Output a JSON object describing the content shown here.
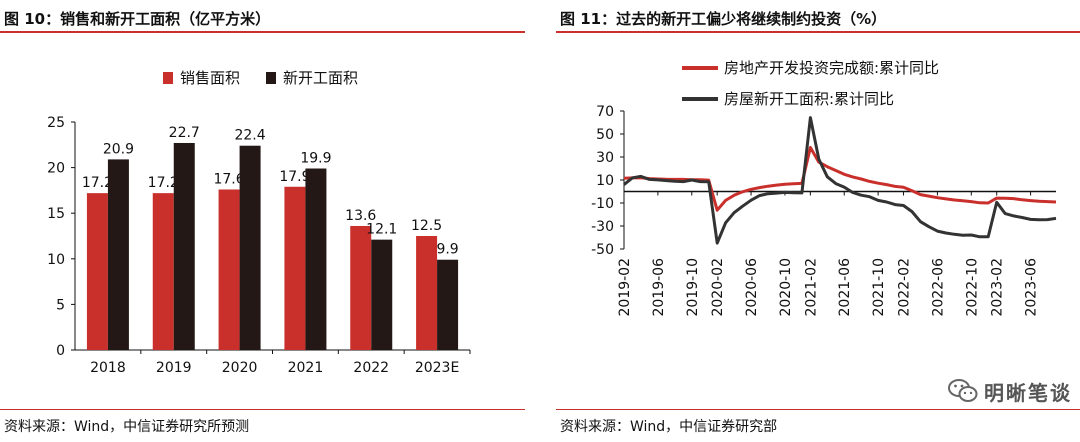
{
  "left": {
    "title": "图 10：销售和新开工面积（亿平方米）",
    "source": "资料来源：Wind，中信证券研究所预测",
    "colors": {
      "bar1": "#c9302c",
      "bar2": "#231815",
      "rule": "#c9302c"
    },
    "chart_data": {
      "type": "bar",
      "categories": [
        "2018",
        "2019",
        "2020",
        "2021",
        "2022",
        "2023E"
      ],
      "series": [
        {
          "name": "销售面积",
          "values": [
            17.2,
            17.2,
            17.6,
            17.9,
            13.6,
            12.5
          ],
          "labels": [
            "17.2",
            "17.2",
            "17.6",
            "17.9",
            "13.6",
            "12.5"
          ]
        },
        {
          "name": "新开工面积",
          "values": [
            20.9,
            22.7,
            22.4,
            19.9,
            12.1,
            9.9
          ],
          "labels": [
            "20.9",
            "22.7",
            "22.4",
            "19.9",
            "12.1",
            "9.9"
          ]
        }
      ],
      "yticks": [
        "0",
        "5",
        "10",
        "15",
        "20",
        "25"
      ],
      "ylim": [
        0,
        25
      ],
      "legend": "top"
    }
  },
  "right": {
    "title": "图 11：过去的新开工偏少将继续制约投资（%）",
    "source": "资料来源：Wind，中信证券研究部",
    "colors": {
      "line1": "#c9302c",
      "line2": "#333333",
      "zero": "#111111"
    },
    "chart_data": {
      "type": "line",
      "x": [
        "2019-02",
        "2019-03",
        "2019-04",
        "2019-05",
        "2019-06",
        "2019-07",
        "2019-08",
        "2019-09",
        "2019-10",
        "2019-11",
        "2019-12",
        "2020-02",
        "2020-03",
        "2020-04",
        "2020-05",
        "2020-06",
        "2020-07",
        "2020-08",
        "2020-09",
        "2020-10",
        "2020-11",
        "2020-12",
        "2021-02",
        "2021-03",
        "2021-04",
        "2021-05",
        "2021-06",
        "2021-07",
        "2021-08",
        "2021-09",
        "2021-10",
        "2021-11",
        "2021-12",
        "2022-02",
        "2022-03",
        "2022-04",
        "2022-05",
        "2022-06",
        "2022-07",
        "2022-08",
        "2022-09",
        "2022-10",
        "2022-11",
        "2022-12",
        "2023-02",
        "2023-03",
        "2023-04",
        "2023-05",
        "2023-06",
        "2023-07",
        "2023-08",
        "2023-09"
      ],
      "xticks": [
        "2019-02",
        "2019-06",
        "2019-10",
        "2020-02",
        "2020-06",
        "2020-10",
        "2021-02",
        "2021-06",
        "2021-10",
        "2022-02",
        "2022-06",
        "2022-10",
        "2023-02",
        "2023-06"
      ],
      "series": [
        {
          "name": "房地产开发投资完成额:累计同比",
          "values": [
            11.6,
            11.8,
            11.9,
            11.2,
            10.9,
            10.6,
            10.5,
            10.5,
            10.3,
            10.2,
            9.9,
            -16.3,
            -7.7,
            -3.3,
            -0.3,
            1.9,
            3.4,
            4.6,
            5.6,
            6.3,
            6.8,
            7.0,
            38.3,
            25.6,
            21.6,
            18.3,
            15.0,
            12.7,
            10.9,
            8.8,
            7.2,
            6.0,
            4.4,
            3.7,
            0.7,
            -2.7,
            -4.0,
            -5.4,
            -6.4,
            -7.4,
            -8.0,
            -8.8,
            -9.8,
            -10.0,
            -5.7,
            -5.8,
            -6.2,
            -7.2,
            -7.9,
            -8.5,
            -8.8,
            -9.1
          ]
        },
        {
          "name": "房屋新开工面积:累计同比",
          "values": [
            6.0,
            11.9,
            13.1,
            10.5,
            10.1,
            9.5,
            8.9,
            8.6,
            10.0,
            8.6,
            8.5,
            -44.9,
            -27.2,
            -18.4,
            -12.8,
            -7.6,
            -3.6,
            -1.9,
            -1.4,
            -0.8,
            -1.0,
            -1.2,
            64.3,
            28.2,
            12.8,
            6.9,
            3.8,
            -0.9,
            -3.2,
            -4.5,
            -7.7,
            -9.1,
            -11.4,
            -12.2,
            -17.5,
            -26.3,
            -30.6,
            -34.4,
            -36.1,
            -37.2,
            -38.0,
            -37.8,
            -39.4,
            -39.4,
            -9.4,
            -19.2,
            -21.2,
            -22.6,
            -24.3,
            -24.5,
            -24.4,
            -23.4
          ]
        }
      ],
      "yticks": [
        "-50",
        "-30",
        "-10",
        "10",
        "30",
        "50",
        "70"
      ],
      "ylim": [
        -50,
        70
      ],
      "legend": "top"
    }
  },
  "watermark": {
    "icon": "wechat-icon",
    "text": "明晰笔谈"
  }
}
